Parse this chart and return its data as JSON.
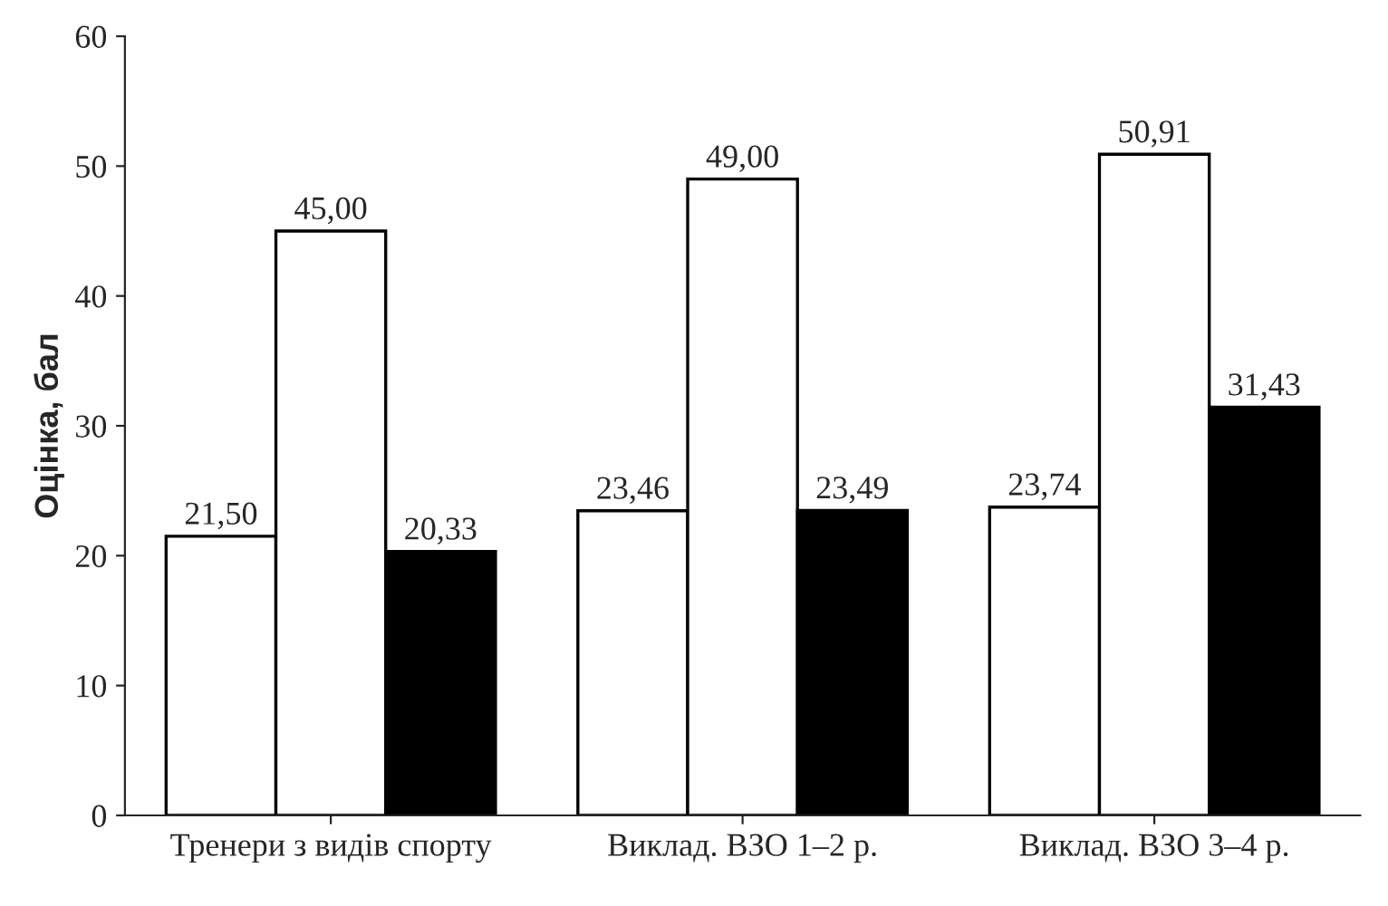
{
  "chart_data": {
    "type": "bar",
    "ylabel": "Оцінка, бал",
    "categories": [
      "Тренери з видів спорту",
      "Виклад. ВЗО 1–2 р.",
      "Виклад. ВЗО 3–4 р."
    ],
    "series": [
      {
        "color": "#ffffff",
        "values": [
          21.5,
          23.46,
          23.74
        ],
        "value_labels": [
          "21,50",
          "23,46",
          "23,74"
        ]
      },
      {
        "color": "#ffffff",
        "values": [
          45.0,
          49.0,
          50.91
        ],
        "value_labels": [
          "45,00",
          "49,00",
          "50,91"
        ]
      },
      {
        "color": "#000000",
        "values": [
          20.33,
          23.49,
          31.43
        ],
        "value_labels": [
          "20,33",
          "23,49",
          "31,43"
        ]
      }
    ],
    "ylim": [
      0,
      60
    ],
    "yticks": [
      0,
      10,
      20,
      30,
      40,
      50,
      60
    ],
    "grid": false,
    "legend": false
  }
}
